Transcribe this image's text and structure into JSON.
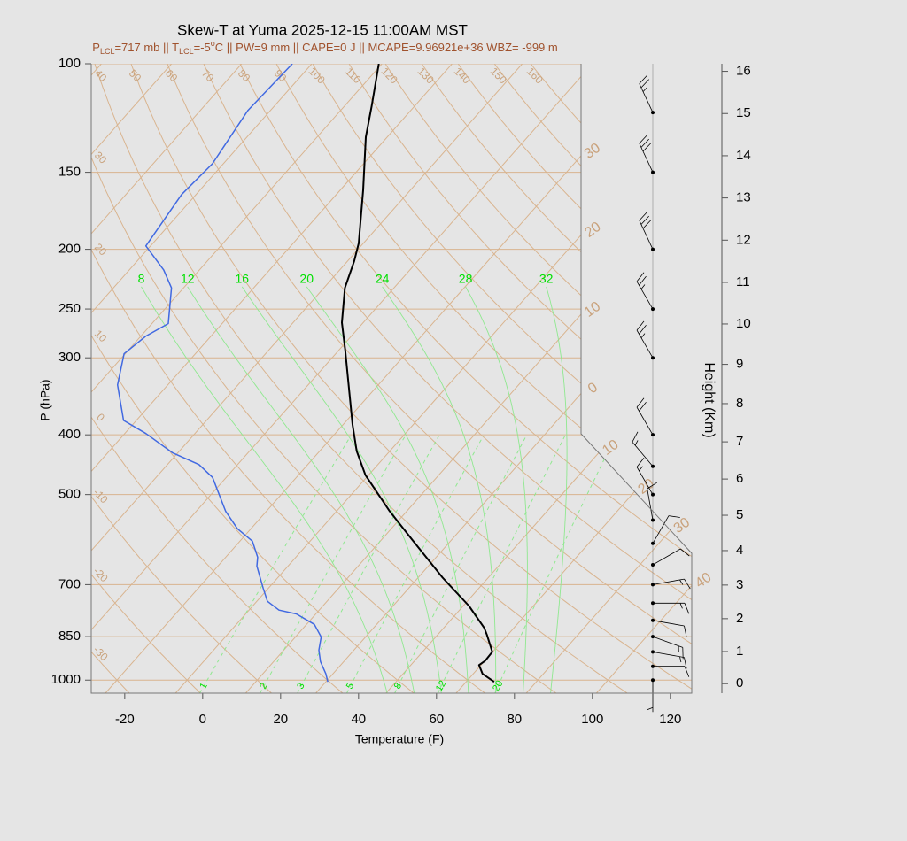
{
  "chart_data": {
    "type": "skewt",
    "title": "Skew-T at Yuma 2025-12-15 11:00AM MST",
    "subtitle": [
      "P",
      "LCL",
      "=717 mb || T",
      "LCL",
      "=-5",
      "o",
      "C || PW=9 mm || CAPE=0 J || MCAPE=9.96921e+36 WBZ= -999 m"
    ],
    "x_label": "Temperature (F)",
    "y_label": "P (hPa)",
    "y2_label": "Height (Km)",
    "xlim": [
      -28.6,
      125.5
    ],
    "xticks": [
      -20,
      0,
      20,
      40,
      60,
      80,
      100,
      120
    ],
    "ylim": [
      1050,
      100
    ],
    "log_y": true,
    "yticks": [
      100,
      150,
      200,
      250,
      300,
      400,
      500,
      700,
      850,
      1000
    ],
    "y2ticks": [
      0,
      1,
      2,
      3,
      4,
      5,
      6,
      7,
      8,
      9,
      10,
      11,
      12,
      13,
      14,
      15,
      16
    ],
    "series": [
      {
        "color": "#000000",
        "pressure": [
          1006.6,
          977,
          945.4,
          930,
          900,
          845,
          823,
          758,
          682,
          591,
          532,
          465,
          425,
          385,
          332,
          291,
          263,
          231,
          209,
          195.5,
          160.4,
          131.5,
          117.2,
          100
        ],
        "values": [
          75.2,
          70.4,
          67.5,
          68.1,
          67.9,
          62.7,
          60.4,
          51.5,
          38.3,
          21.7,
          9.6,
          -4.8,
          -12.5,
          -19.6,
          -29.6,
          -38.5,
          -45.5,
          -52.6,
          -56.3,
          -59.2,
          -70.1,
          -81.5,
          -87.0,
          -94.8
        ]
      },
      {
        "color": "#4169e1",
        "pressure": [
          1006.6,
          977,
          933,
          894,
          851,
          812,
          781,
          770,
          745,
          709,
          653,
          632,
          595,
          568,
          532,
          469,
          447,
          428,
          398,
          379,
          332,
          295.5,
          276.6,
          264,
          231,
          216,
          197.5,
          163,
          145.3,
          119.1,
          100
        ],
        "values": [
          32.5,
          30.2,
          26.0,
          23.0,
          20.6,
          16.0,
          9.0,
          3.7,
          -1.3,
          -5.4,
          -12.0,
          -13.8,
          -18.8,
          -25.5,
          -32.5,
          -43.5,
          -49.9,
          -59.3,
          -70.6,
          -79.3,
          -88.9,
          -94.3,
          -92.7,
          -89.8,
          -97.1,
          -103.2,
          -113.2,
          -115.7,
          -114.8,
          -117.8,
          -117.0
        ]
      }
    ],
    "isotherms_c": [
      {
        "value": -110,
        "label": null
      },
      {
        "value": -100,
        "label": null
      },
      {
        "value": -90,
        "label": null
      },
      {
        "value": -80,
        "label": null
      },
      {
        "value": -70,
        "label": null
      },
      {
        "value": -60,
        "label": null
      },
      {
        "value": -50,
        "label": null
      },
      {
        "value": -40,
        "label": null
      },
      {
        "value": -30,
        "label": "30"
      },
      {
        "value": -20,
        "label": "20"
      },
      {
        "value": -10,
        "label": "10"
      },
      {
        "value": 0,
        "label": "0"
      },
      {
        "value": 10,
        "label": "10"
      },
      {
        "value": 20,
        "label": "20"
      },
      {
        "value": 30,
        "label": "30"
      },
      {
        "value": 40,
        "label": "40"
      }
    ],
    "dry_adiabats_c": [
      -30,
      -20,
      -10,
      0,
      10,
      20,
      30,
      40,
      50,
      60,
      70,
      80,
      90,
      100,
      110,
      120,
      130,
      140,
      150,
      160
    ],
    "moist_adiabats_c": [
      8,
      12,
      16,
      20,
      24,
      28,
      32
    ],
    "mixing_ratio_gkg": [
      1,
      2,
      3,
      5,
      8,
      12,
      20
    ],
    "winds": {
      "pressure": [
        1000,
        950,
        900,
        850,
        800,
        750,
        700,
        650,
        600,
        550,
        500,
        450,
        400,
        300,
        250,
        200,
        150,
        120
      ],
      "direction": [
        180,
        90,
        100,
        110,
        100,
        90,
        80,
        60,
        30,
        350,
        330,
        320,
        330,
        330,
        330,
        335,
        335,
        335
      ],
      "speed": [
        5,
        10,
        15,
        15,
        10,
        15,
        15,
        10,
        10,
        10,
        15,
        15,
        20,
        25,
        25,
        30,
        30,
        25
      ]
    }
  }
}
